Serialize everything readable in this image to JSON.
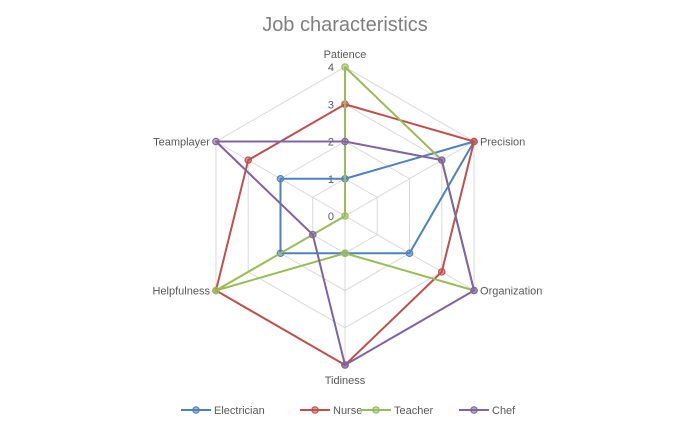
{
  "chart_data": {
    "type": "radar",
    "title": "Job characteristics",
    "categories": [
      "Patience",
      "Precision",
      "Organization",
      "Tidiness",
      "Helpfulness",
      "Teamplayer"
    ],
    "ticks": [
      "0",
      "1",
      "2",
      "3",
      "4"
    ],
    "rmin": 0,
    "rmax": 4,
    "grid": true,
    "legend_position": "bottom",
    "series": [
      {
        "name": "Electrician",
        "color": "#4f81bd",
        "values": [
          1,
          4,
          2,
          1,
          2,
          2
        ]
      },
      {
        "name": "Nurse",
        "color": "#c0504d",
        "values": [
          3,
          4,
          3,
          4,
          4,
          3
        ]
      },
      {
        "name": "Teacher",
        "color": "#9bbb59",
        "values": [
          4,
          3,
          4,
          1,
          4,
          0
        ]
      },
      {
        "name": "Chef",
        "color": "#8064a2",
        "values": [
          2,
          3,
          4,
          4,
          1,
          4
        ]
      }
    ]
  }
}
